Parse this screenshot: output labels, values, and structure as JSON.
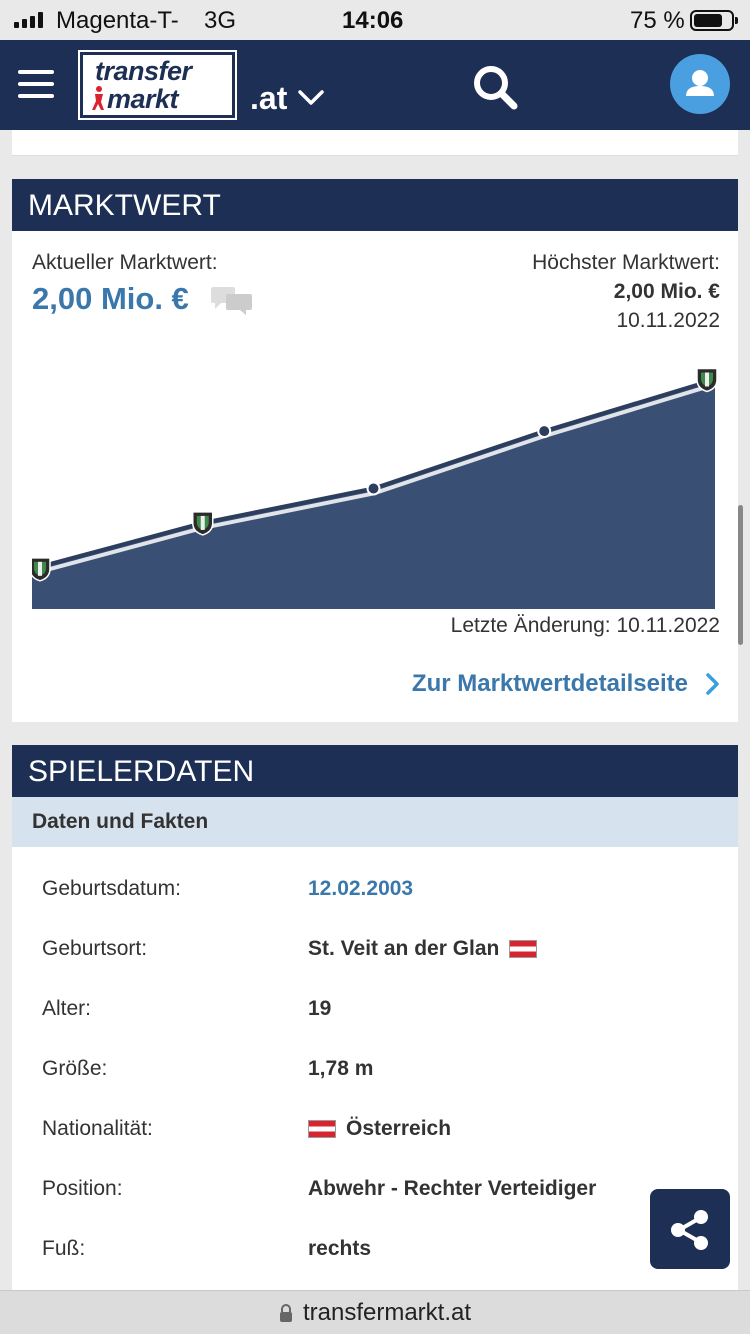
{
  "status_bar": {
    "carrier": "Magenta-T-",
    "network": "3G",
    "time": "14:06",
    "battery": "75 %"
  },
  "header": {
    "logo_line1": "transfer",
    "logo_line2": "markt",
    "domain": ".at"
  },
  "marktwert": {
    "title": "MARKTWERT",
    "current_label": "Aktueller Marktwert:",
    "current_value": "2,00 Mio. €",
    "highest_label": "Höchster Marktwert:",
    "highest_value": "2,00 Mio. €",
    "highest_date": "10.11.2022",
    "last_change": "Letzte Änderung: 10.11.2022",
    "detail_link": "Zur Marktwertdetailseite"
  },
  "chart_data": {
    "type": "area",
    "title": "",
    "xlabel": "",
    "ylabel": "",
    "points": [
      {
        "x": 0,
        "y": 0.35,
        "marker": "club-crest"
      },
      {
        "x": 1,
        "y": 0.75,
        "marker": "club-crest"
      },
      {
        "x": 2,
        "y": 1.05,
        "marker": "dot"
      },
      {
        "x": 3,
        "y": 1.55,
        "marker": "dot"
      },
      {
        "x": 4,
        "y": 2.0,
        "marker": "club-crest"
      }
    ],
    "ylim": [
      0,
      2.1
    ],
    "grid": false,
    "colors": {
      "fill": "#3a4f74",
      "line": "#2c3d5e",
      "highlight": "#ffffff"
    }
  },
  "spielerdaten": {
    "title": "SPIELERDATEN",
    "subtitle": "Daten und Fakten",
    "rows": [
      {
        "key": "Geburtsdatum:",
        "value": "12.02.2003"
      },
      {
        "key": "Geburtsort:",
        "value": "St. Veit an der Glan"
      },
      {
        "key": "Alter:",
        "value": "19"
      },
      {
        "key": "Größe:",
        "value": "1,78 m"
      },
      {
        "key": "Nationalität:",
        "value": "Österreich"
      },
      {
        "key": "Position:",
        "value": "Abwehr - Rechter Verteidiger"
      },
      {
        "key": "Fuß:",
        "value": "rechts"
      }
    ]
  },
  "url_bar": {
    "url": "transfermarkt.at"
  },
  "colors": {
    "navy": "#1d2f54",
    "link_blue": "#3a78ab",
    "avatar_blue": "#4a9fe0",
    "subheader": "#d6e3ee"
  }
}
